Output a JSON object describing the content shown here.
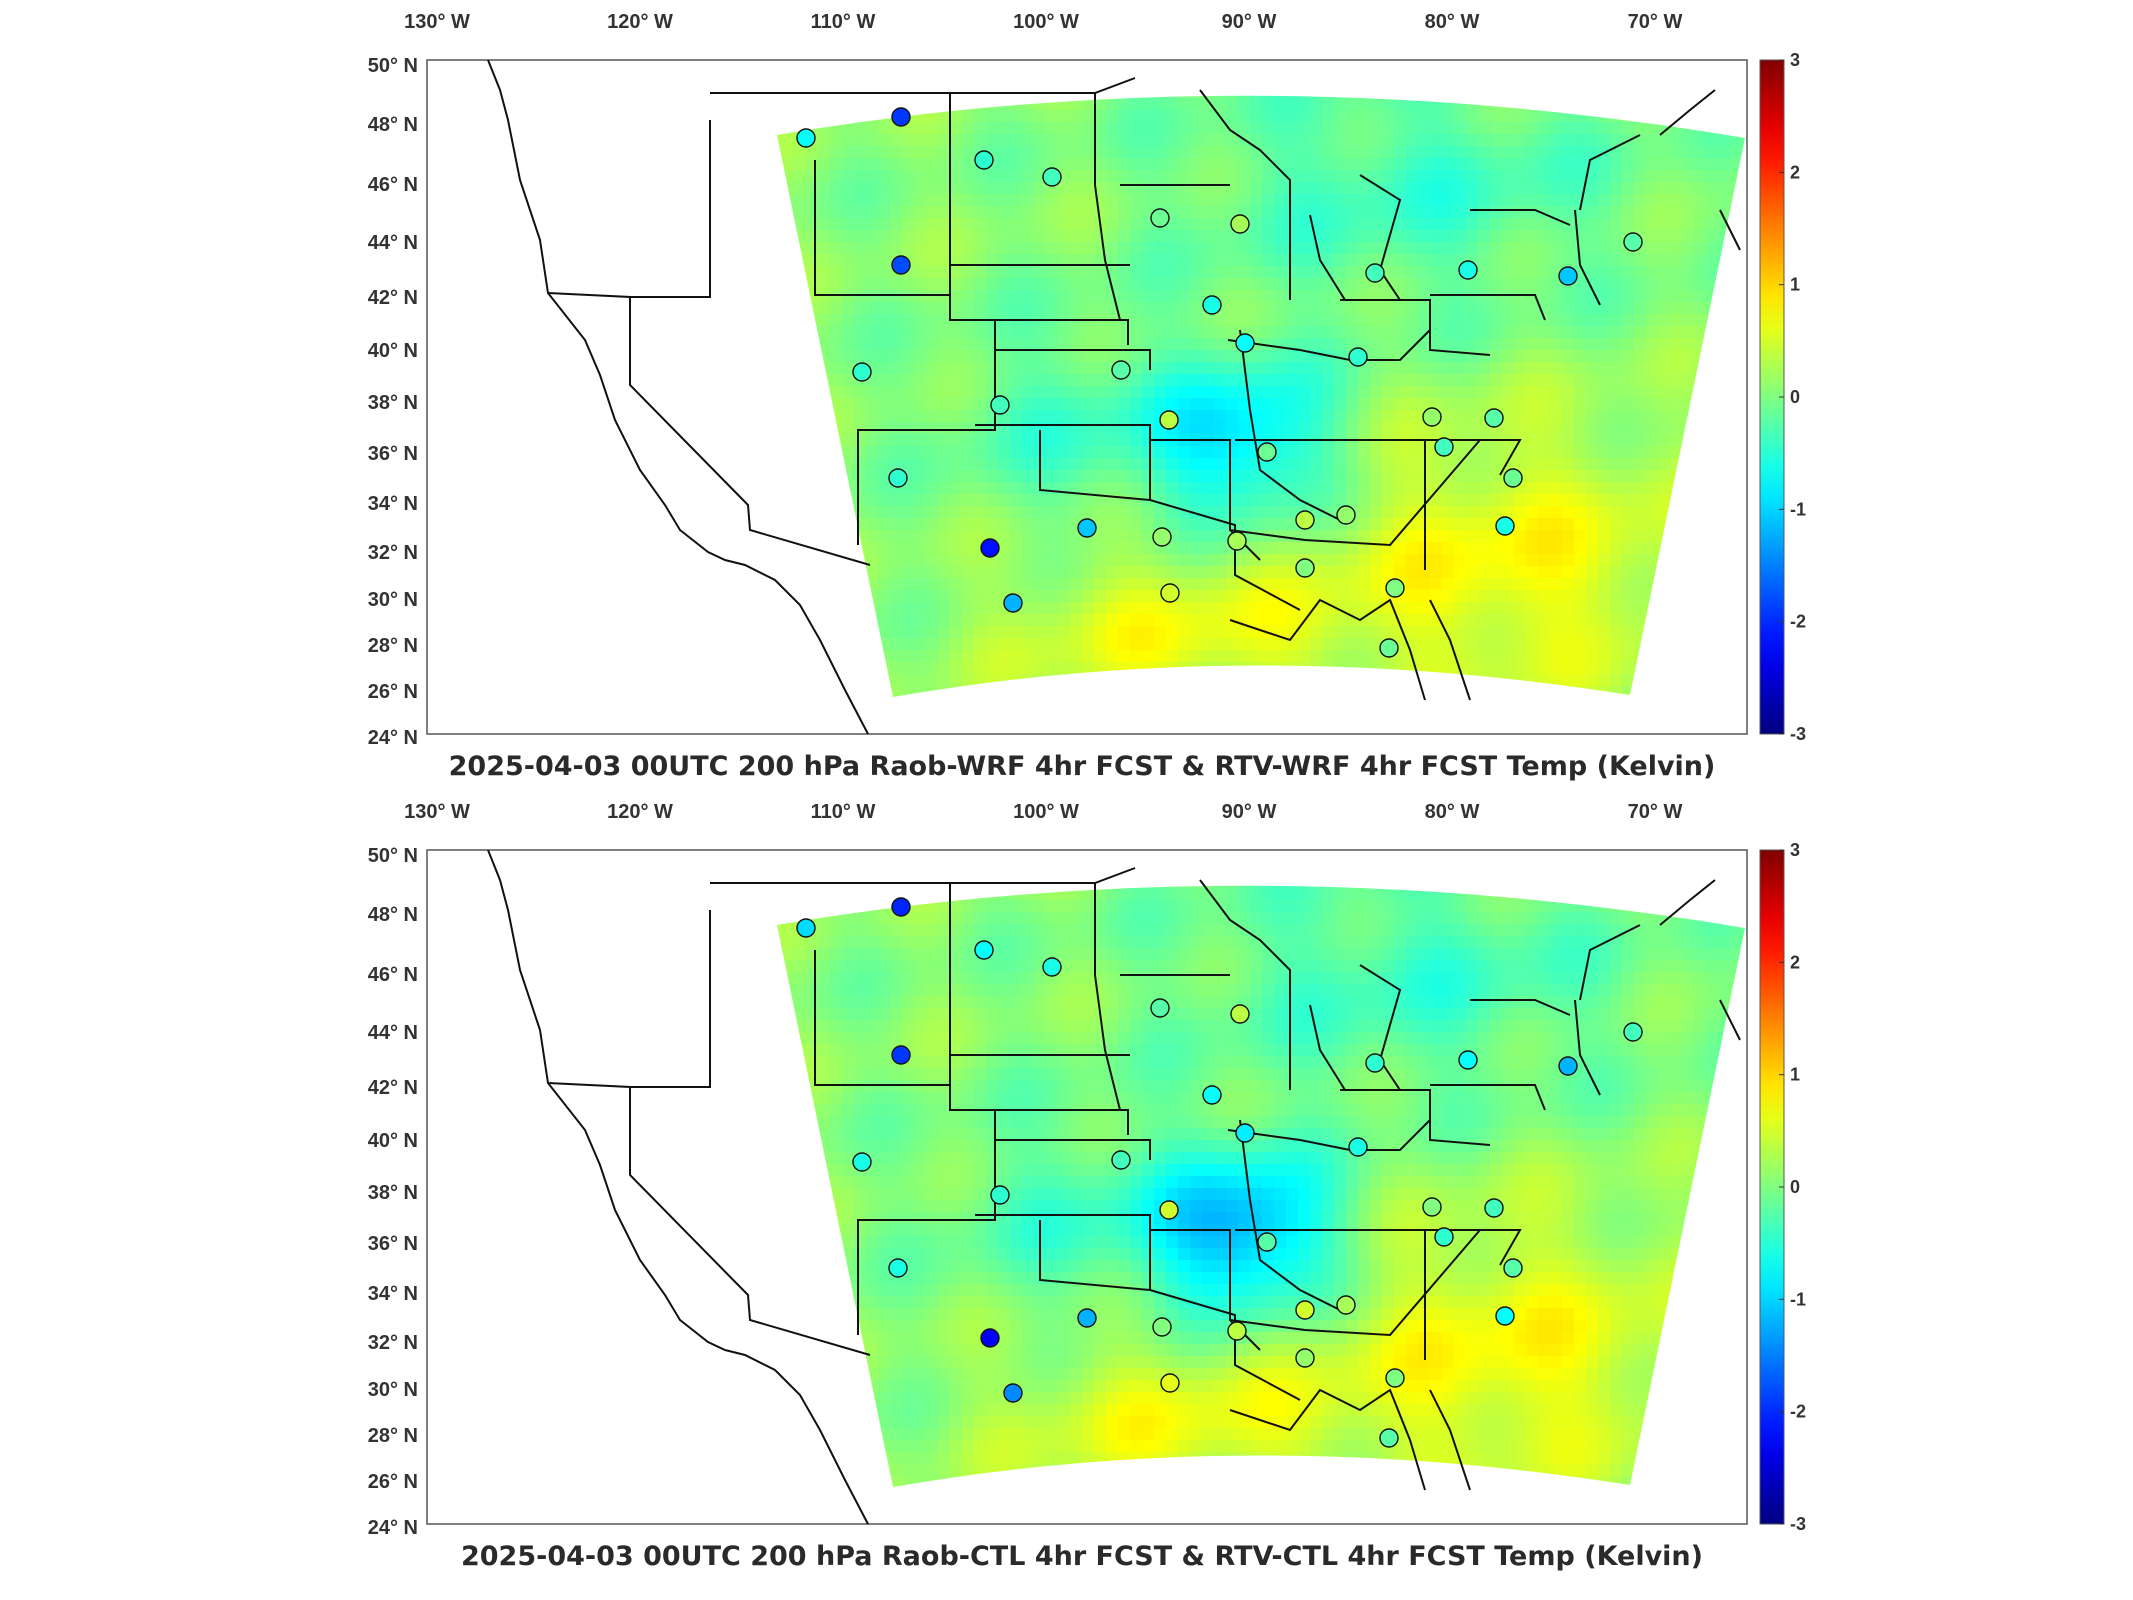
{
  "panels": [
    {
      "title": "2025-04-03 00UTC 200 hPa Raob-WRF 4hr FCST & RTV-WRF 4hr FCST Temp (Kelvin)",
      "station_anomalies": [
        -0.6,
        -1.6,
        -0.4,
        -1.5,
        -0.3,
        -0.1,
        0.2,
        -0.5,
        -0.3,
        -0.5,
        -0.9,
        -0.2,
        -0.4,
        -0.3,
        -0.2,
        -0.6,
        0.3,
        -0.1,
        -0.4,
        0.1,
        -0.3,
        -0.2,
        -0.1,
        -0.5,
        -0.4,
        -1.8,
        -1.0,
        -0.9,
        0.1,
        0.2,
        0.3,
        0.1,
        0.0,
        0.4,
        0.0,
        -0.1
      ]
    },
    {
      "title": "2025-04-03 00UTC 200 hPa Raob-CTL 4hr FCST & RTV-CTL 4hr FCST Temp (Kelvin)",
      "station_anomalies": [
        -0.8,
        -1.7,
        -0.6,
        -1.6,
        -0.5,
        -0.2,
        0.3,
        -0.6,
        -0.4,
        -0.6,
        -1.0,
        -0.3,
        -0.5,
        -0.4,
        -0.3,
        -0.7,
        0.4,
        -0.2,
        -0.5,
        0.0,
        -0.4,
        -0.3,
        -0.2,
        -0.6,
        -0.5,
        -1.9,
        -1.2,
        -1.0,
        0.0,
        0.3,
        0.4,
        0.2,
        0.1,
        0.5,
        0.0,
        -0.2
      ]
    }
  ],
  "lon_ticks": [
    "130° W",
    "120° W",
    "110° W",
    "100° W",
    "90° W",
    "80° W",
    "70° W"
  ],
  "lat_ticks": [
    "50° N",
    "48° N",
    "46° N",
    "44° N",
    "42° N",
    "40° N",
    "38° N",
    "36° N",
    "34° N",
    "32° N",
    "30° N",
    "28° N",
    "26° N",
    "24° N"
  ],
  "colorbar": {
    "min": -3,
    "max": 3,
    "ticks": [
      "3",
      "2",
      "1",
      "0",
      "-1",
      "-2",
      "-3"
    ],
    "colormap": "jet",
    "colors": [
      "#00008f",
      "#0000ff",
      "#00ffff",
      "#ffff00",
      "#ff0000",
      "#800000"
    ]
  }
}
